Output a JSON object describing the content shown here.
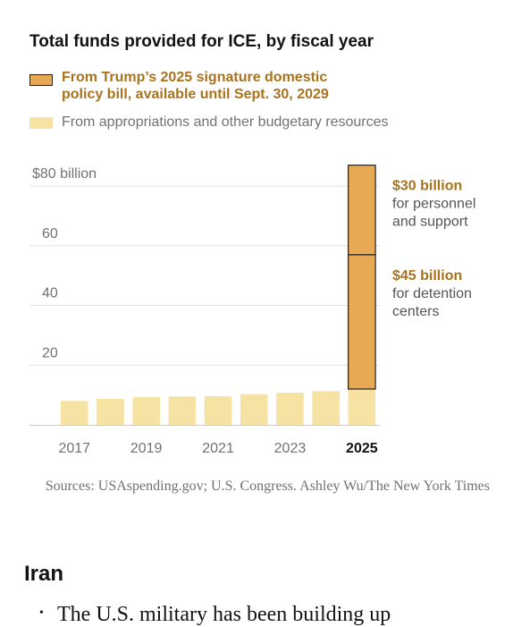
{
  "title": "Total funds provided for ICE, by fiscal year",
  "legend": [
    {
      "label_lines": [
        "From Trump’s 2025 signature domestic",
        "policy bill, available until Sept. 30, 2029"
      ],
      "color": "#E8A954"
    },
    {
      "label": "From appropriations and other budgetary resources",
      "color": "#F6E2A2"
    }
  ],
  "chart_data": {
    "type": "bar",
    "stacked": true,
    "categories": [
      "2017",
      "2018",
      "2019",
      "2020",
      "2021",
      "2022",
      "2023",
      "2024",
      "2025"
    ],
    "tick_labels": [
      "2017",
      "2019",
      "2021",
      "2023",
      "2025"
    ],
    "highlight_tick": "2025",
    "ylim": [
      0,
      80
    ],
    "yticks": [
      20,
      40,
      60,
      80
    ],
    "ytick_labels": [
      "20",
      "40",
      "60",
      "$80 billion"
    ],
    "grid": true,
    "series": [
      {
        "name": "From appropriations and other budgetary resources",
        "color": "#F6E2A2",
        "values": [
          8,
          8.7,
          9.3,
          9.5,
          9.6,
          10.3,
          10.8,
          11.3,
          12
        ]
      },
      {
        "name": "From Trump’s 2025 signature domestic policy bill, available until Sept. 30, 2029",
        "color": "#E8A954",
        "segments_2025": [
          45,
          30
        ]
      }
    ],
    "annotations": [
      {
        "value": "$30 billion",
        "lines": [
          "for personnel",
          "and support"
        ],
        "segment": 1
      },
      {
        "value": "$45 billion",
        "lines": [
          "for detention",
          "centers"
        ],
        "segment": 0
      }
    ],
    "colors": {
      "accent_text": "#A8731C",
      "bar_outline": "#222222",
      "grid": "#E2E2E2",
      "axis_text": "#727272"
    }
  },
  "source": "Sources: USAspending.gov; U.S. Congress. Ashley Wu/The New York Times",
  "section": {
    "heading": "Iran",
    "bullet": "The U.S. military has been building up"
  }
}
